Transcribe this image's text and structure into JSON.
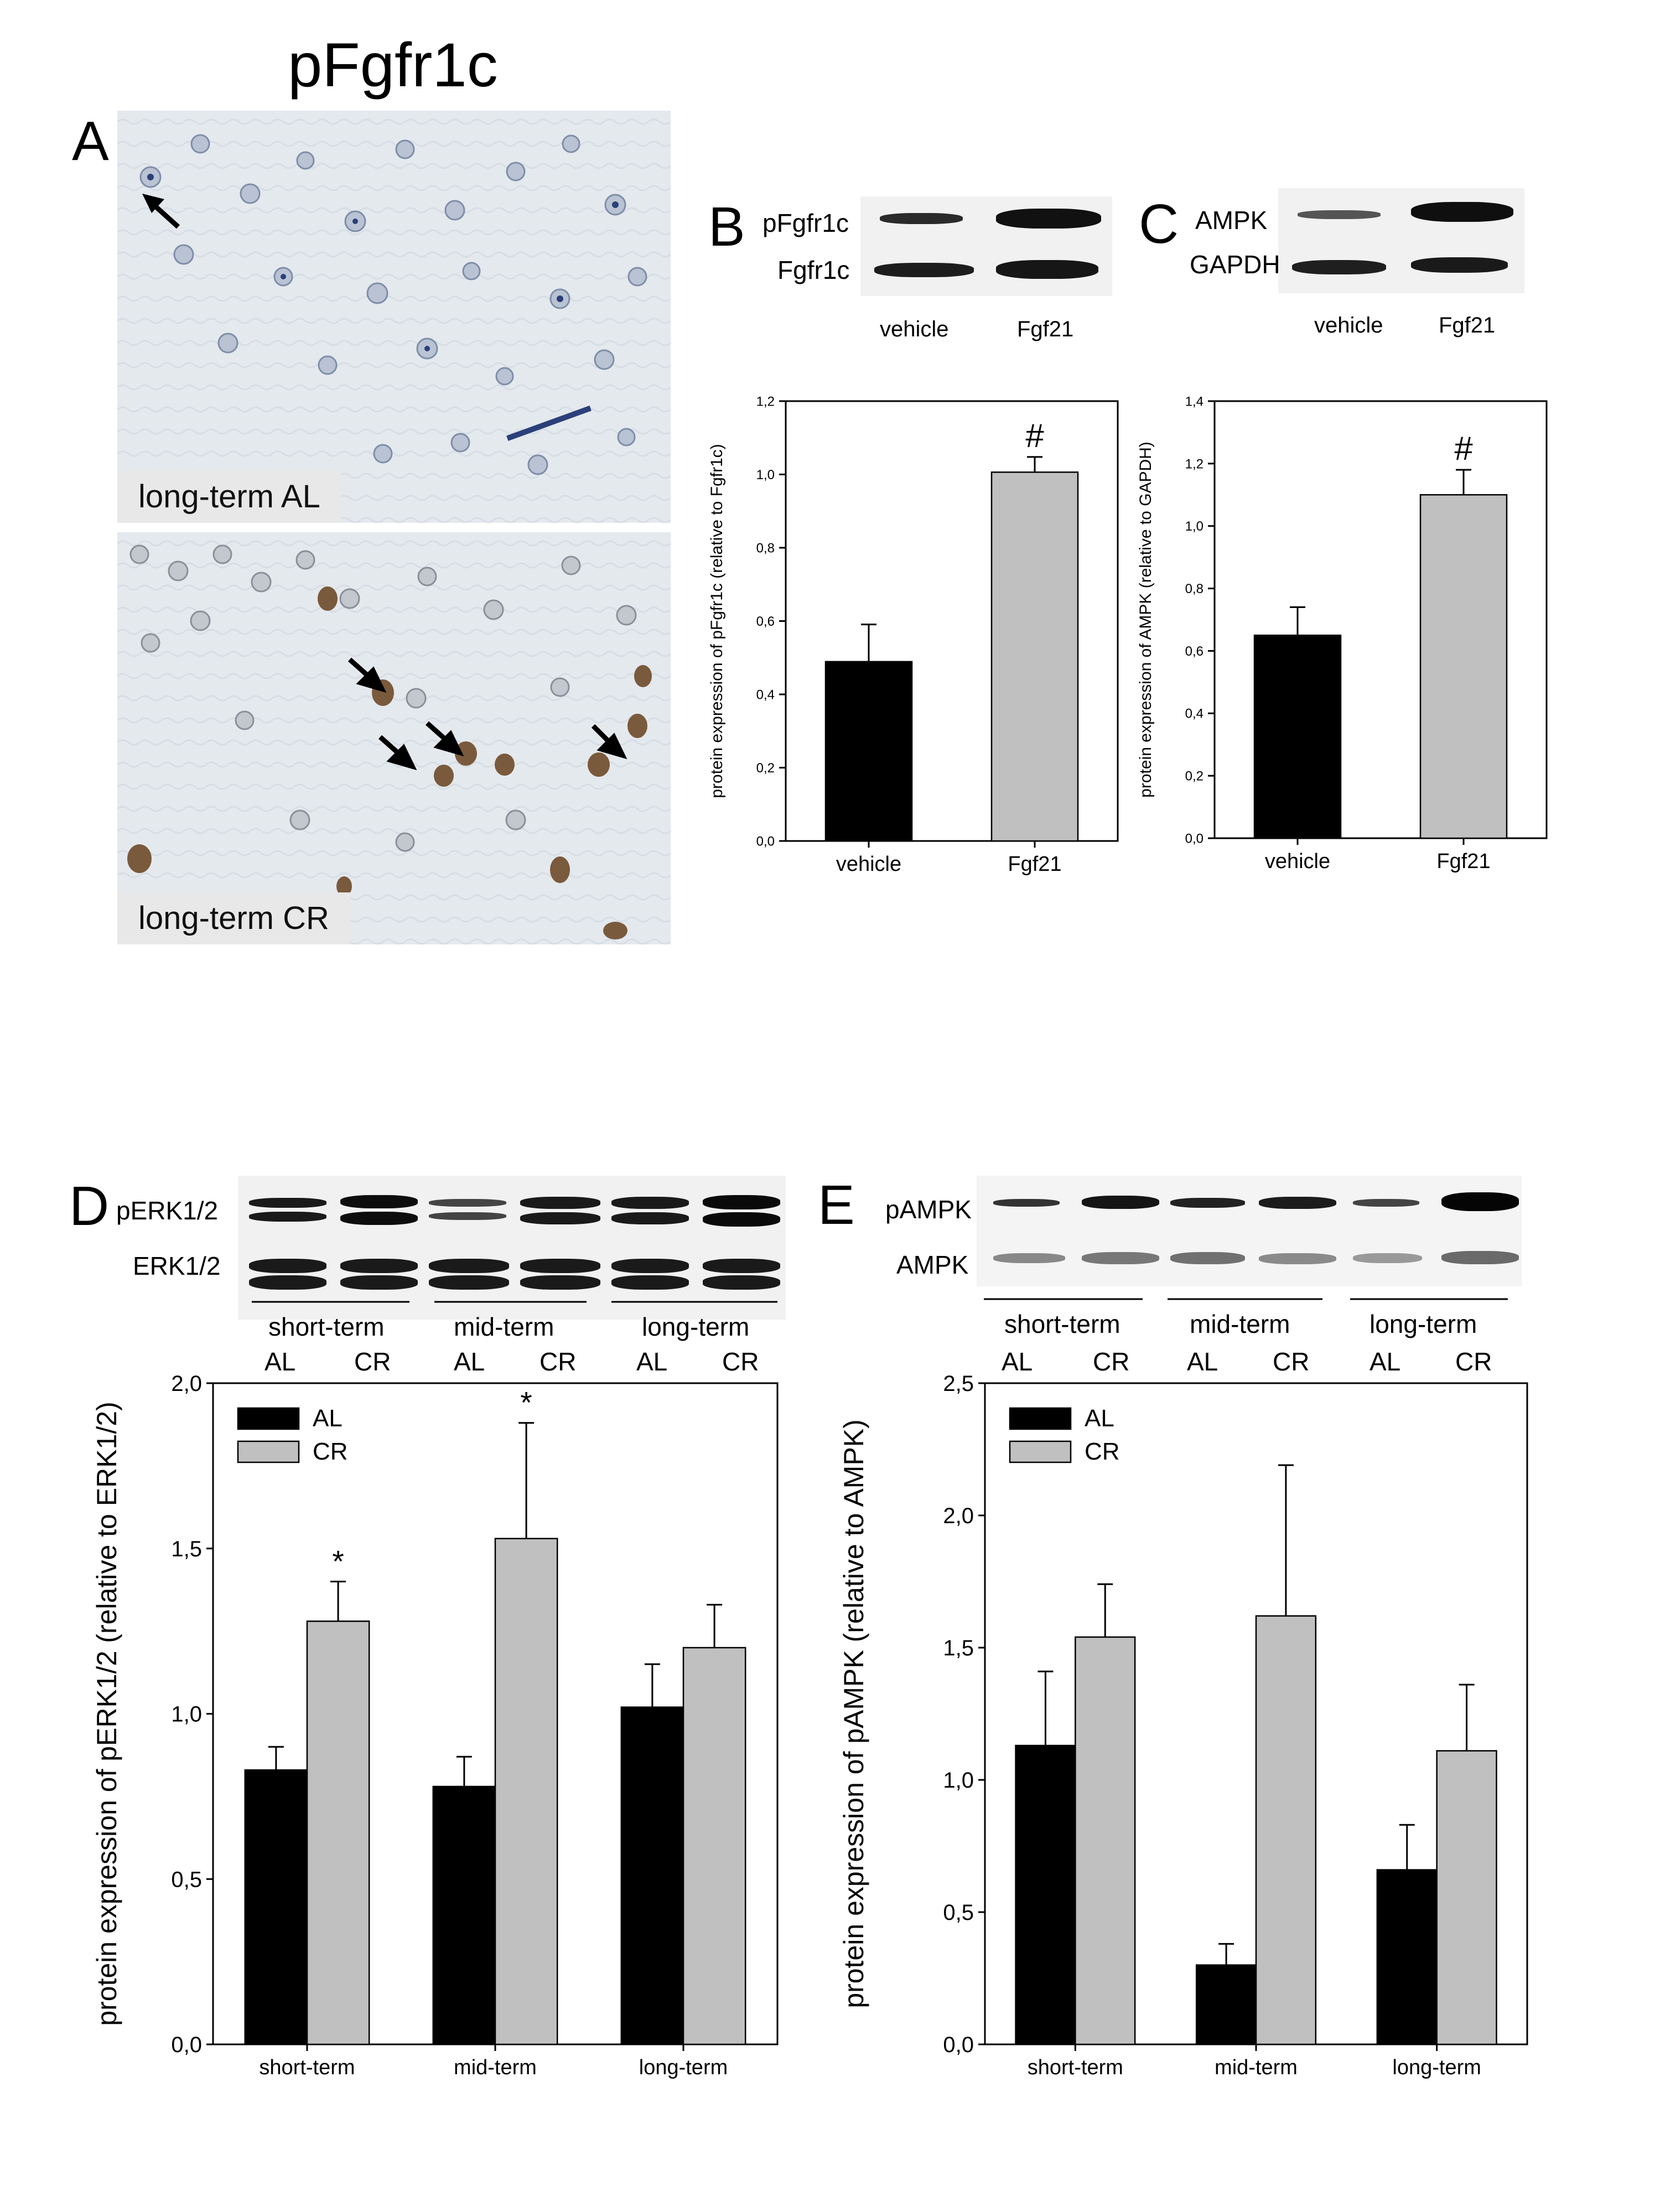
{
  "figure": {
    "title": "pFgfr1c",
    "panel_labels": {
      "A": "A",
      "B": "B",
      "C": "C",
      "D": "D",
      "E": "E"
    },
    "panel_a": {
      "top_label": "long-term AL",
      "bottom_label": "long-term CR"
    },
    "panel_b_blot": {
      "row1": "pFgfr1c",
      "row2": "Fgfr1c",
      "lane1": "vehicle",
      "lane2": "Fgf21"
    },
    "panel_c_blot": {
      "row1": "AMPK",
      "row2": "GAPDH",
      "lane1": "vehicle",
      "lane2": "Fgf21"
    },
    "panel_d_blot": {
      "row1": "pERK1/2",
      "row2": "ERK1/2",
      "groups": [
        "short-term",
        "mid-term",
        "long-term"
      ],
      "lanes": [
        "AL",
        "CR",
        "AL",
        "CR",
        "AL",
        "CR"
      ]
    },
    "panel_e_blot": {
      "row1": "pAMPK",
      "row2": "AMPK",
      "groups": [
        "short-term",
        "mid-term",
        "long-term"
      ],
      "lanes": [
        "AL",
        "CR",
        "AL",
        "CR",
        "AL",
        "CR"
      ]
    }
  },
  "colors": {
    "black_bar": "#000000",
    "grey_bar": "#c0c0c0",
    "axis": "#000000"
  },
  "chart_data": [
    {
      "id": "B",
      "type": "bar",
      "categories": [
        "vehicle",
        "Fgf21"
      ],
      "series": [
        {
          "values": [
            0.53,
            1.09
          ],
          "errors": [
            0.11,
            0.045
          ],
          "colors": [
            "#000000",
            "#c0c0c0"
          ]
        }
      ],
      "ylabel": "protein expression of pFgfr1c (relative to Fgfr1c)",
      "ylim": [
        0,
        1.3
      ],
      "yticks": [
        "0,0",
        "0,2",
        "0,4",
        "0,6",
        "0,8",
        "1,0",
        "1,2"
      ],
      "annotations": [
        {
          "category": "Fgf21",
          "text": "#"
        }
      ]
    },
    {
      "id": "C",
      "type": "bar",
      "categories": [
        "vehicle",
        "Fgf21"
      ],
      "series": [
        {
          "values": [
            0.65,
            1.1
          ],
          "errors": [
            0.09,
            0.08
          ],
          "colors": [
            "#000000",
            "#c0c0c0"
          ]
        }
      ],
      "ylabel": "protein expression of AMPK (relative to GAPDH)",
      "ylim": [
        0,
        1.4
      ],
      "yticks": [
        "0,0",
        "0,2",
        "0,4",
        "0,6",
        "0,8",
        "1,0",
        "1,2",
        "1,4"
      ],
      "annotations": [
        {
          "category": "Fgf21",
          "text": "#"
        }
      ]
    },
    {
      "id": "D",
      "type": "bar",
      "categories": [
        "short-term",
        "mid-term",
        "long-term"
      ],
      "series": [
        {
          "name": "AL",
          "values": [
            0.83,
            0.78,
            1.02
          ],
          "errors": [
            0.07,
            0.09,
            0.13
          ],
          "color": "#000000"
        },
        {
          "name": "CR",
          "values": [
            1.28,
            1.53,
            1.2
          ],
          "errors": [
            0.12,
            0.35,
            0.13
          ],
          "color": "#c0c0c0"
        }
      ],
      "ylabel": "protein expression of pERK1/2 (relative to ERK1/2)",
      "ylim": [
        0,
        2.0
      ],
      "yticks": [
        "0,0",
        "0,5",
        "1,0",
        "1,5",
        "2,0"
      ],
      "legend": "top-left",
      "annotations": [
        {
          "category": "short-term",
          "series": "CR",
          "text": "*"
        },
        {
          "category": "mid-term",
          "series": "CR",
          "text": "*"
        }
      ]
    },
    {
      "id": "E",
      "type": "bar",
      "categories": [
        "short-term",
        "mid-term",
        "long-term"
      ],
      "series": [
        {
          "name": "AL",
          "values": [
            1.13,
            0.3,
            0.66
          ],
          "errors": [
            0.28,
            0.08,
            0.17
          ],
          "color": "#000000"
        },
        {
          "name": "CR",
          "values": [
            1.54,
            1.62,
            1.11
          ],
          "errors": [
            0.2,
            0.57,
            0.25
          ],
          "color": "#c0c0c0"
        }
      ],
      "ylabel": "protein expression of pAMPK (relative to AMPK)",
      "ylim": [
        0,
        2.5
      ],
      "yticks": [
        "0,0",
        "0,5",
        "1,0",
        "1,5",
        "2,0",
        "2,5"
      ],
      "legend": "top-left"
    }
  ]
}
